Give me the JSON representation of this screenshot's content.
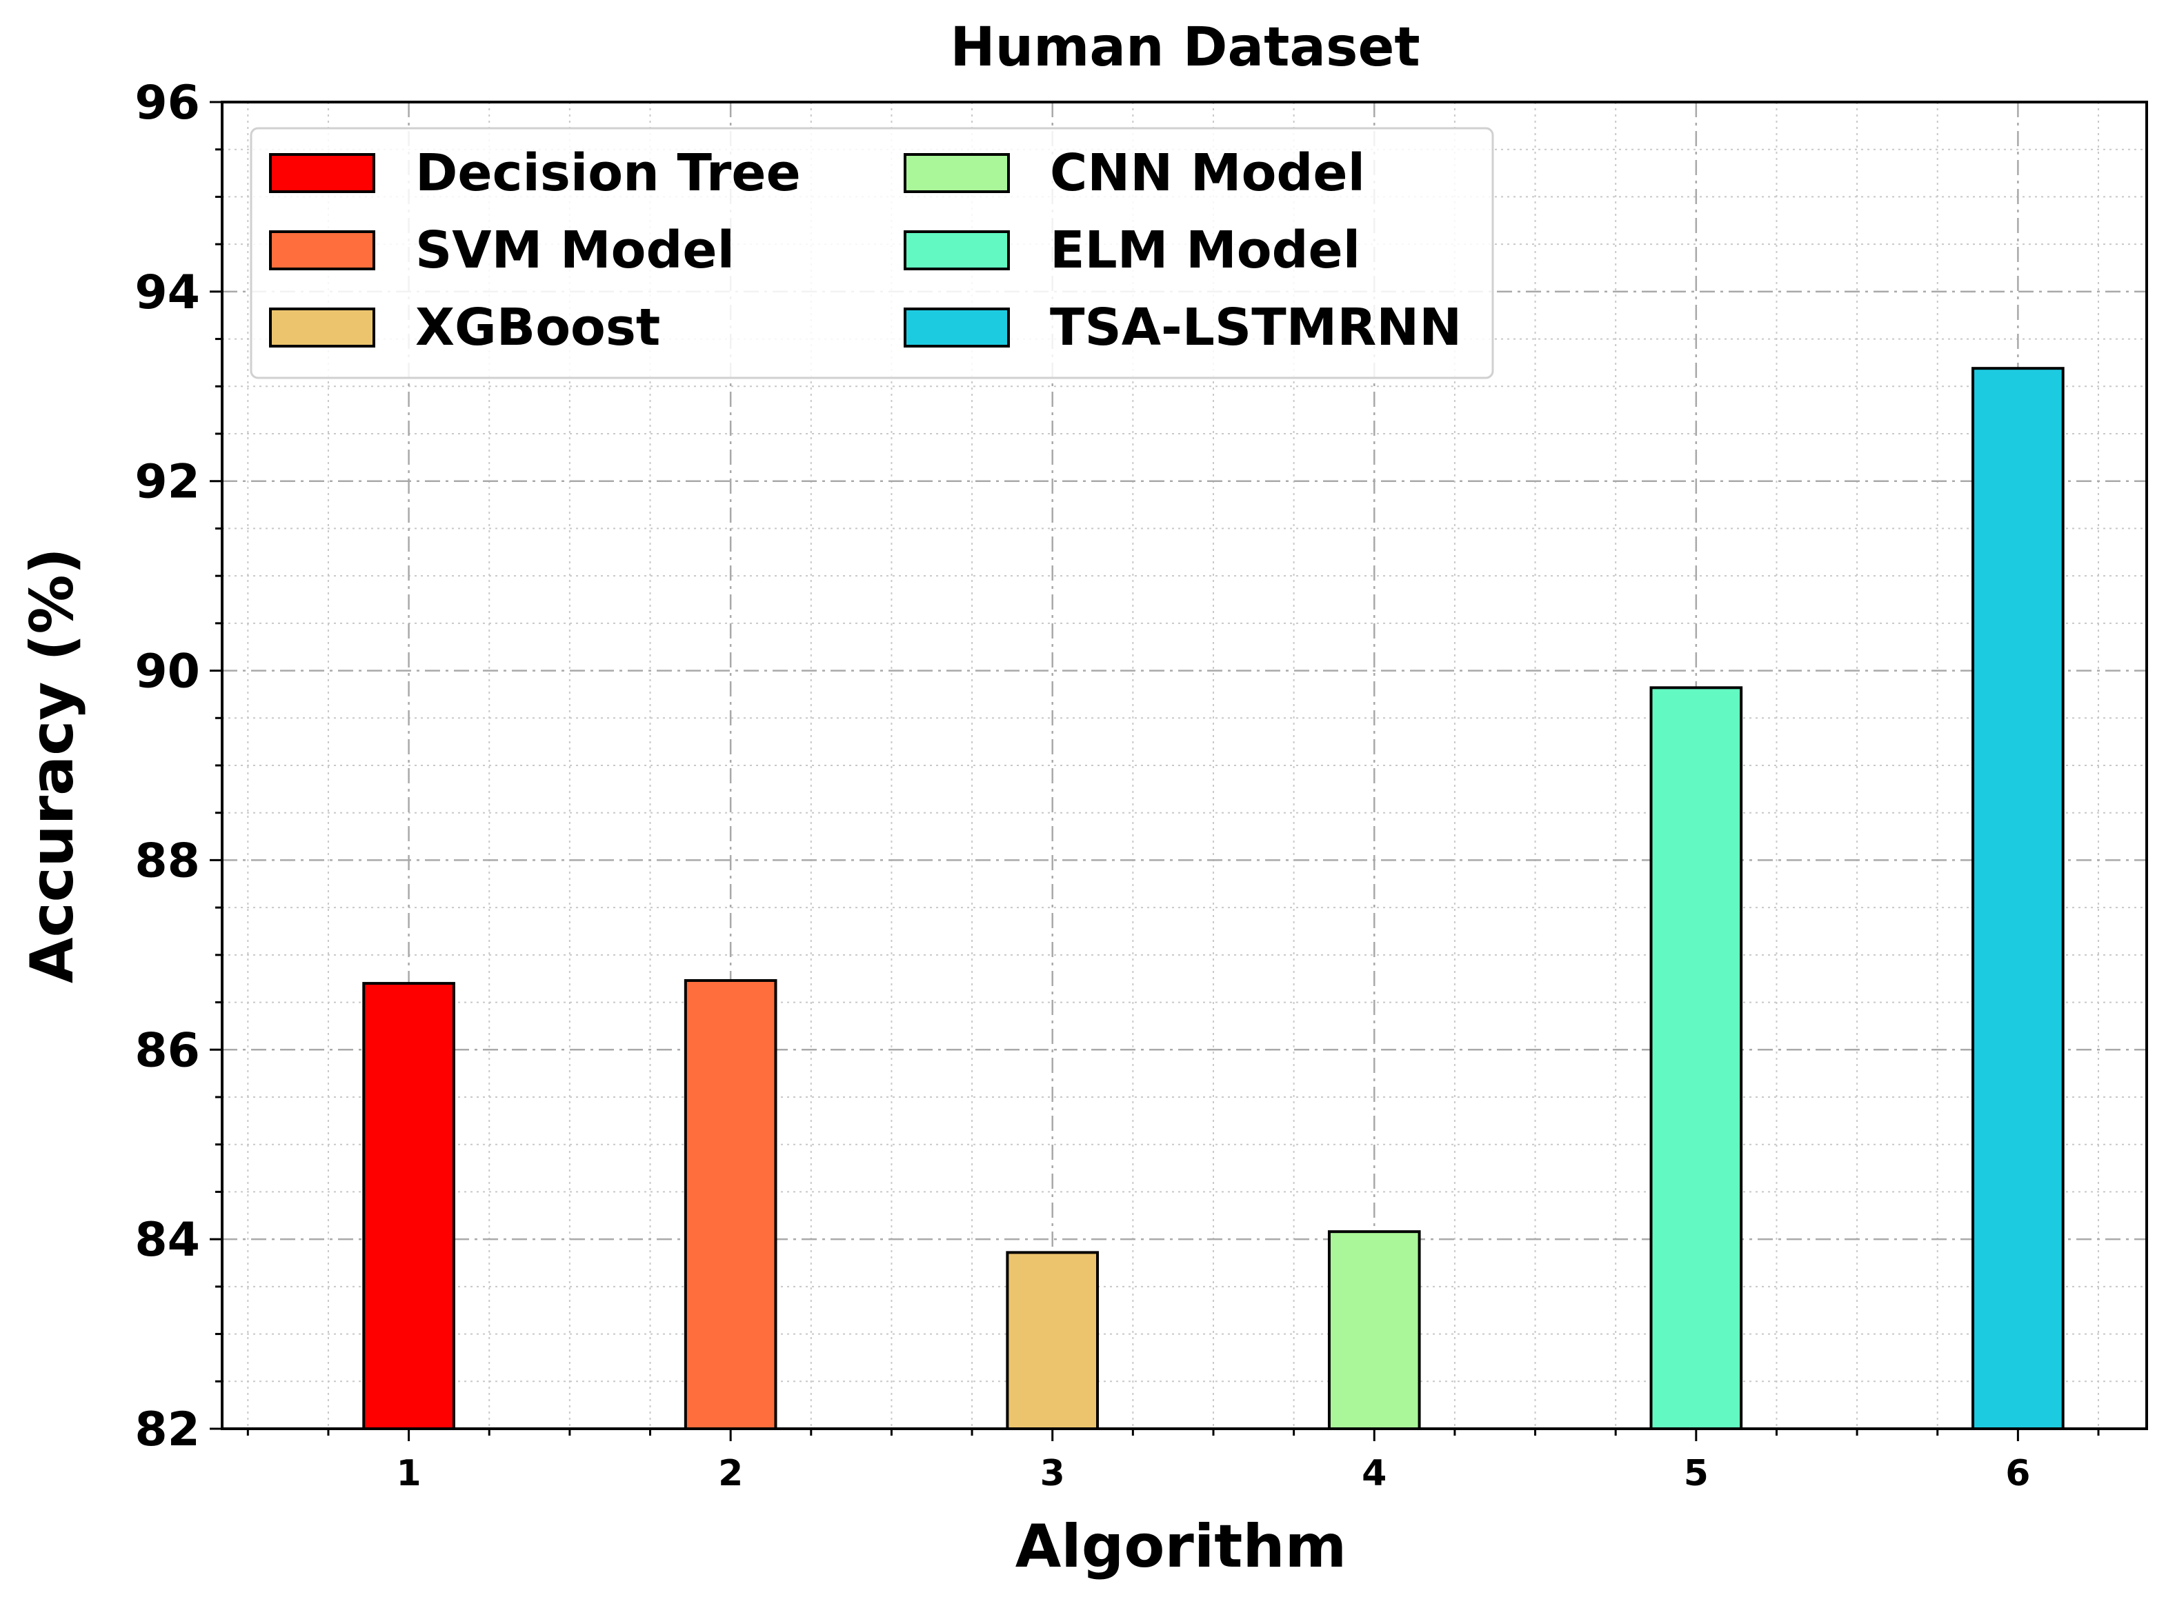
{
  "chart_data": {
    "type": "bar",
    "title": "Human Dataset",
    "xlabel": "Algorithm",
    "ylabel": "Accuracy (%)",
    "categories": [
      "1",
      "2",
      "3",
      "4",
      "5",
      "6"
    ],
    "ylim": [
      82,
      96
    ],
    "yticks": [
      "82",
      "84",
      "86",
      "88",
      "90",
      "92",
      "94",
      "96"
    ],
    "grid": true,
    "legend_position": "top-left",
    "series": [
      {
        "name": "Decision Tree",
        "x": 1,
        "value": 86.7,
        "color": "#ff0000"
      },
      {
        "name": "SVM Model",
        "x": 2,
        "value": 86.73,
        "color": "#ff6e3c"
      },
      {
        "name": "XGBoost",
        "x": 3,
        "value": 83.86,
        "color": "#edc46e"
      },
      {
        "name": "CNN Model",
        "x": 4,
        "value": 84.08,
        "color": "#aaf799"
      },
      {
        "name": "ELM Model",
        "x": 5,
        "value": 89.82,
        "color": "#63f9c2"
      },
      {
        "name": "TSA-LSTMRNN",
        "x": 6,
        "value": 93.19,
        "color": "#1dcbe1"
      }
    ]
  }
}
